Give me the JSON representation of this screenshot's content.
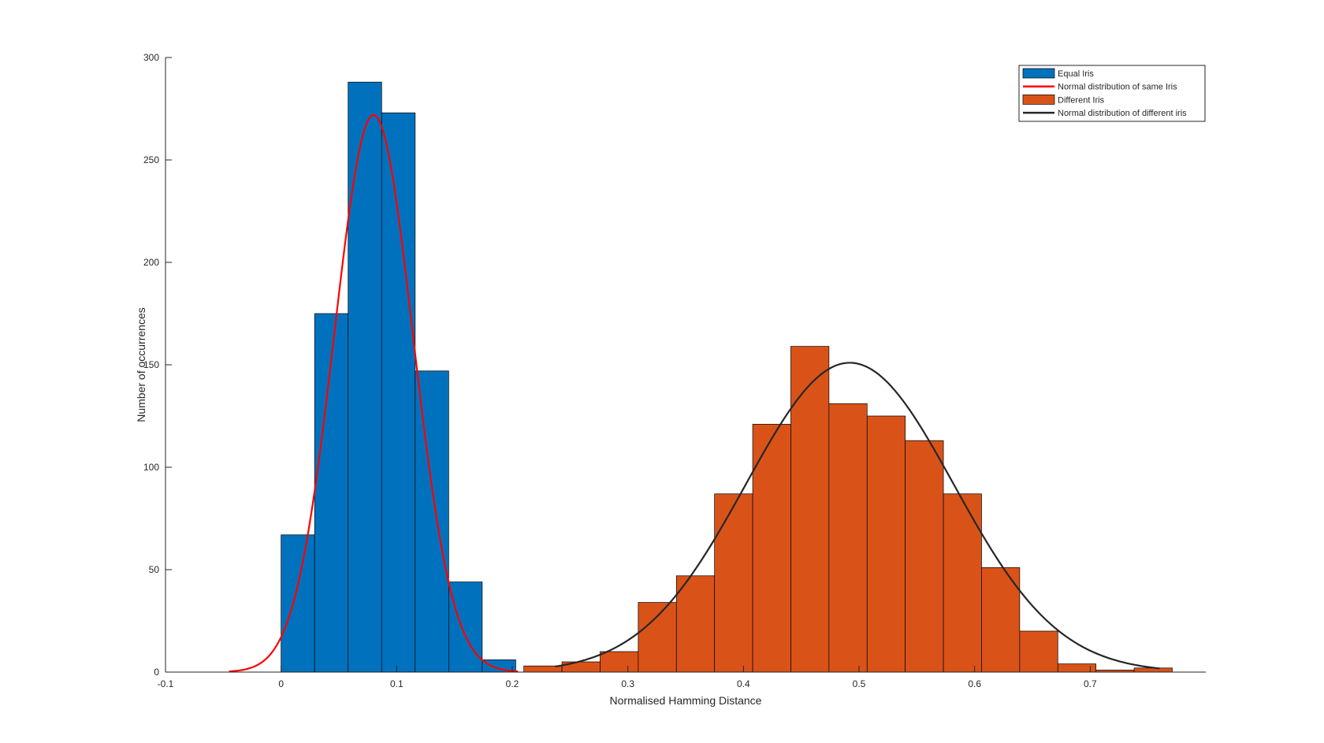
{
  "chart_data": {
    "type": "bar",
    "title": "",
    "xlabel": "Normalised Hamming Distance",
    "ylabel": "Number of occurrences",
    "xlim": [
      -0.1,
      0.8
    ],
    "ylim": [
      0,
      300
    ],
    "xticks": [
      -0.1,
      0,
      0.1,
      0.2,
      0.3,
      0.4,
      0.5,
      0.6,
      0.7
    ],
    "yticks": [
      0,
      50,
      100,
      150,
      200,
      250,
      300
    ],
    "grid": false,
    "legend_position": "top-right",
    "histograms": [
      {
        "name": "Equal Iris",
        "color": "#0072BD",
        "bin_edges": [
          0.0,
          0.029,
          0.058,
          0.087,
          0.116,
          0.145,
          0.174,
          0.203
        ],
        "counts": [
          67,
          175,
          288,
          273,
          147,
          44,
          6
        ]
      },
      {
        "name": "Different Iris",
        "color": "#D95319",
        "bin_edges": [
          0.21,
          0.243,
          0.276,
          0.309,
          0.342,
          0.375,
          0.408,
          0.441,
          0.474,
          0.507,
          0.54,
          0.573,
          0.606,
          0.639,
          0.672,
          0.705,
          0.738,
          0.771
        ],
        "counts": [
          3,
          5,
          10,
          34,
          47,
          87,
          121,
          159,
          131,
          125,
          113,
          87,
          51,
          20,
          4,
          1,
          2
        ]
      }
    ],
    "curves": [
      {
        "name": "Normal distribution of same Iris",
        "color": "#FF0000",
        "mean": 0.08,
        "sigma": 0.034,
        "peak": 272,
        "x_range": [
          -0.045,
          0.205
        ]
      },
      {
        "name": "Normal distribution of different iris",
        "color": "#262626",
        "mean": 0.492,
        "sigma": 0.09,
        "peak": 151,
        "x_range": [
          0.237,
          0.76
        ]
      }
    ]
  }
}
